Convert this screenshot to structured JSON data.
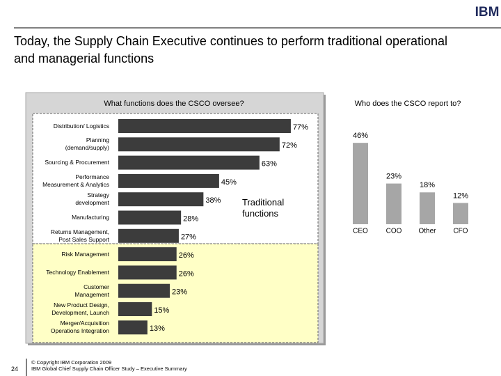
{
  "header": {
    "logo": "IBM",
    "title": "Today, the Supply Chain Executive continues to perform traditional operational and managerial functions"
  },
  "chart_data": [
    {
      "type": "hbar",
      "title": "What functions does the CSCO oversee?",
      "categories": [
        "Distribution/ Logistics",
        "Planning\n(demand/supply)",
        "Sourcing & Procurement",
        "Performance\nMeasurement & Analytics",
        "Strategy\ndevelopment",
        "Manufacturing",
        "Returns Management,\nPost Sales Support",
        "Risk Management",
        "Technology Enablement",
        "Customer\nManagement",
        "New Product Design,\nDevelopment, Launch",
        "Merger/Acquisition\nOperations Integration"
      ],
      "values": [
        77,
        72,
        63,
        45,
        38,
        28,
        27,
        26,
        26,
        23,
        15,
        13
      ],
      "value_labels": [
        "77%",
        "72%",
        "63%",
        "45%",
        "38%",
        "28%",
        "27%",
        "26%",
        "26%",
        "23%",
        "15%",
        "13%"
      ],
      "color": "#3c3c3c",
      "annotation": "Traditional\nfunctions"
    },
    {
      "type": "bar",
      "title": "Who does the CSCO report to?",
      "categories": [
        "CEO",
        "COO",
        "Other",
        "CFO"
      ],
      "values": [
        46,
        23,
        18,
        12
      ],
      "value_labels": [
        "46%",
        "23%",
        "18%",
        "12%"
      ],
      "color": "#a6a6a6"
    }
  ],
  "footer": {
    "page": "24",
    "copyright": "© Copyright IBM Corporation 2009",
    "source": "IBM Global Chief Supply Chain Officer Study – Executive Summary"
  }
}
